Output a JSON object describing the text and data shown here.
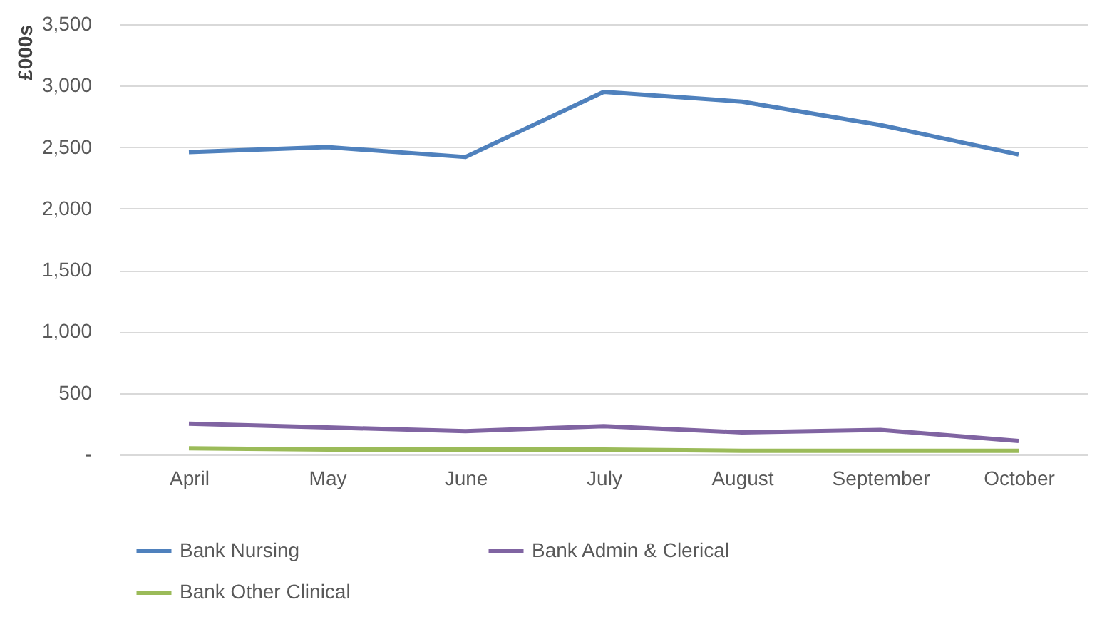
{
  "chart_data": {
    "type": "line",
    "ylabel": "£000s",
    "categories": [
      "April",
      "May",
      "June",
      "July",
      "August",
      "September",
      "October"
    ],
    "series": [
      {
        "name": "Bank Nursing",
        "color": "#4f81bd",
        "values": [
          2460,
          2500,
          2420,
          2950,
          2870,
          2680,
          2440
        ]
      },
      {
        "name": "Bank Admin & Clerical",
        "color": "#8064a2",
        "values": [
          250,
          220,
          190,
          230,
          180,
          200,
          110
        ]
      },
      {
        "name": "Bank Other Clinical",
        "color": "#9bbb59",
        "values": [
          50,
          40,
          40,
          40,
          30,
          30,
          30
        ]
      }
    ],
    "ylim": [
      0,
      3500
    ],
    "yticks": [
      {
        "value": 0,
        "label": "-"
      },
      {
        "value": 500,
        "label": "500"
      },
      {
        "value": 1000,
        "label": "1,000"
      },
      {
        "value": 1500,
        "label": "1,500"
      },
      {
        "value": 2000,
        "label": "2,000"
      },
      {
        "value": 2500,
        "label": "2,500"
      },
      {
        "value": 3000,
        "label": "3,000"
      },
      {
        "value": 3500,
        "label": "3,500"
      }
    ],
    "grid": "y",
    "legend": "bottom",
    "marker": "none",
    "line_style": "solid"
  }
}
